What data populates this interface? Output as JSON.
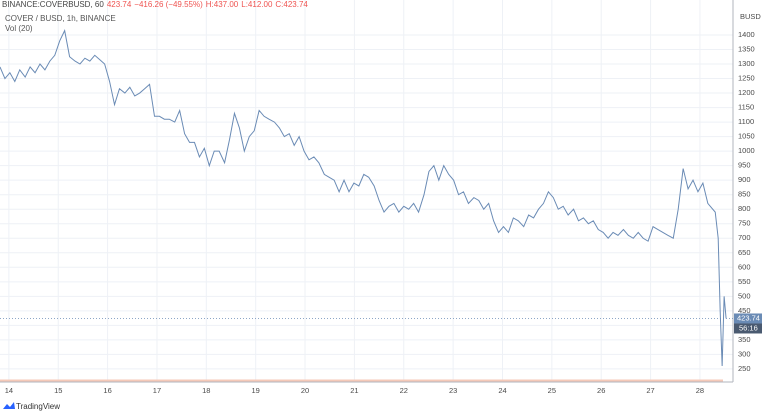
{
  "header": {
    "symbol": "BINANCE:COVERBUSD, 60",
    "last": "423.74",
    "change": "−416.26 (−49.55%)",
    "high": "H:437.00",
    "low": "L:412.00",
    "close": "C:423.74"
  },
  "legend": {
    "volume": "Vol (20)"
  },
  "branding": "TradingView",
  "chart_data": {
    "type": "line",
    "y_unit": "BUSD",
    "x": [
      13.82,
      13.92,
      14.02,
      14.12,
      14.22,
      14.33,
      14.43,
      14.53,
      14.63,
      14.73,
      14.83,
      14.93,
      15.03,
      15.13,
      15.23,
      15.34,
      15.44,
      15.54,
      15.64,
      15.74,
      15.84,
      15.94,
      16.04,
      16.14,
      16.24,
      16.35,
      16.45,
      16.55,
      16.65,
      16.75,
      16.85,
      16.95,
      17.05,
      17.15,
      17.25,
      17.36,
      17.46,
      17.56,
      17.66,
      17.76,
      17.86,
      17.96,
      18.06,
      18.16,
      18.26,
      18.37,
      18.47,
      18.57,
      18.67,
      18.77,
      18.87,
      18.97,
      19.07,
      19.17,
      19.27,
      19.38,
      19.48,
      19.58,
      19.68,
      19.78,
      19.88,
      19.98,
      20.08,
      20.18,
      20.28,
      20.39,
      20.49,
      20.59,
      20.69,
      20.79,
      20.89,
      20.99,
      21.09,
      21.19,
      21.29,
      21.4,
      21.5,
      21.6,
      21.7,
      21.8,
      21.9,
      22.0,
      22.1,
      22.2,
      22.3,
      22.41,
      22.51,
      22.61,
      22.71,
      22.81,
      22.91,
      23.01,
      23.11,
      23.21,
      23.31,
      23.42,
      23.52,
      23.62,
      23.72,
      23.82,
      23.92,
      24.02,
      24.12,
      24.22,
      24.32,
      24.43,
      24.53,
      24.63,
      24.73,
      24.83,
      24.93,
      25.03,
      25.13,
      25.23,
      25.33,
      25.44,
      25.54,
      25.64,
      25.74,
      25.84,
      25.94,
      26.04,
      26.14,
      26.24,
      26.34,
      26.45,
      26.55,
      26.65,
      26.75,
      26.85,
      26.95,
      27.05,
      27.15,
      27.25,
      27.35,
      27.46,
      27.56,
      27.66,
      27.76,
      27.86,
      27.96,
      28.06,
      28.16,
      28.31,
      28.37,
      28.41,
      28.45,
      28.49,
      28.53
    ],
    "series": [
      {
        "name": "COVER / BUSD, 1h, BINANCE",
        "color": "#6a8bb5",
        "values": [
          1290,
          1250,
          1270,
          1240,
          1280,
          1255,
          1290,
          1270,
          1300,
          1280,
          1310,
          1330,
          1380,
          1415,
          1325,
          1310,
          1300,
          1320,
          1310,
          1330,
          1315,
          1300,
          1240,
          1160,
          1215,
          1200,
          1220,
          1190,
          1200,
          1215,
          1230,
          1120,
          1120,
          1110,
          1110,
          1100,
          1140,
          1060,
          1030,
          1030,
          980,
          1010,
          950,
          1000,
          1000,
          960,
          1040,
          1130,
          1080,
          1000,
          1050,
          1070,
          1140,
          1120,
          1110,
          1100,
          1080,
          1050,
          1060,
          1020,
          1050,
          1000,
          970,
          980,
          960,
          920,
          910,
          900,
          860,
          900,
          860,
          890,
          880,
          920,
          910,
          880,
          830,
          790,
          810,
          820,
          790,
          810,
          800,
          820,
          790,
          850,
          930,
          950,
          900,
          950,
          920,
          900,
          850,
          860,
          820,
          840,
          830,
          800,
          820,
          760,
          720,
          740,
          720,
          770,
          760,
          740,
          780,
          770,
          800,
          820,
          860,
          840,
          800,
          810,
          780,
          800,
          760,
          770,
          750,
          760,
          730,
          720,
          700,
          720,
          710,
          730,
          710,
          700,
          720,
          700,
          690,
          740,
          730,
          720,
          710,
          700,
          800,
          940,
          870,
          900,
          860,
          890,
          820,
          790,
          700,
          450,
          260,
          500,
          423.74
        ]
      }
    ],
    "last_price": 423.74,
    "countdown": "56:16",
    "xlim": [
      13.82,
      28.67
    ],
    "ylim": [
      205,
      1486
    ],
    "xticks": [
      14,
      15,
      16,
      17,
      18,
      19,
      20,
      21,
      22,
      23,
      24,
      25,
      26,
      27,
      28
    ],
    "yticks": [
      250,
      300,
      350,
      400,
      450,
      500,
      550,
      600,
      650,
      700,
      750,
      800,
      850,
      900,
      950,
      1000,
      1050,
      1100,
      1150,
      1200,
      1250,
      1300,
      1350,
      1400
    ],
    "grid": true
  }
}
